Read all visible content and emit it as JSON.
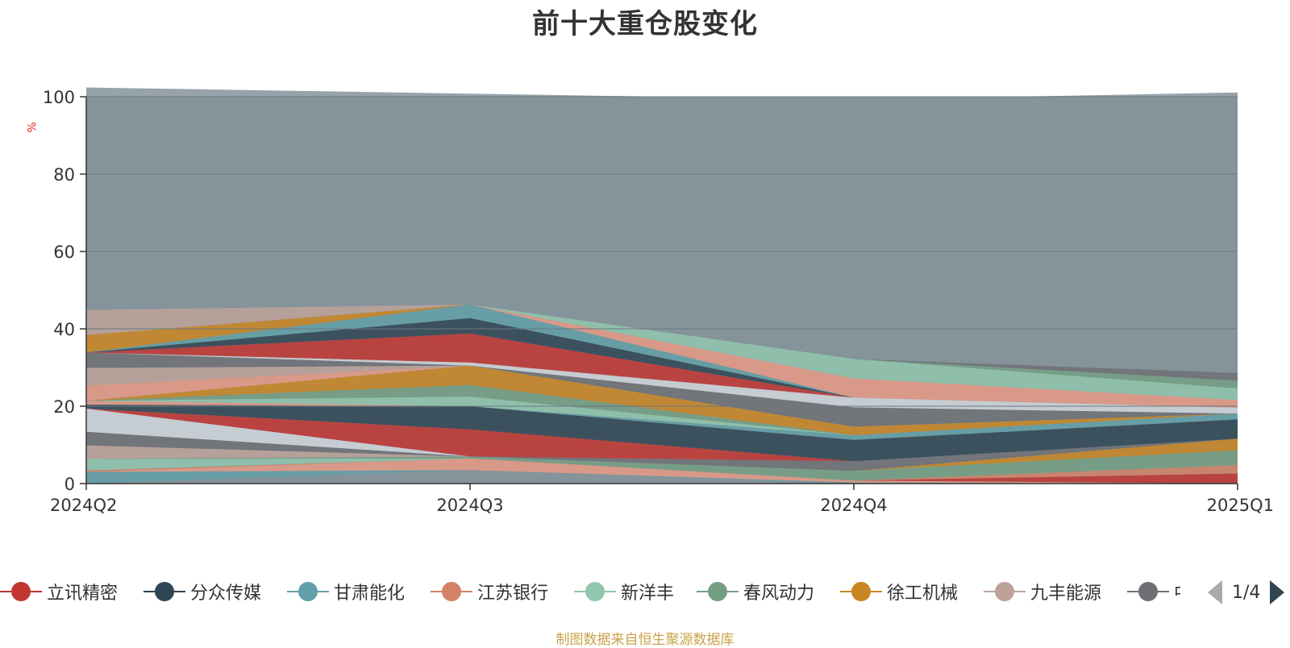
{
  "title": "前十大重仓股变化",
  "unit": "%",
  "source": "制图数据来自恒生聚源数据库",
  "pager": {
    "text": "1/4"
  },
  "legend": [
    {
      "name": "立讯精密",
      "color": "#c23531"
    },
    {
      "name": "分众传媒",
      "color": "#2f4554"
    },
    {
      "name": "甘肃能化",
      "color": "#61a0a8"
    },
    {
      "name": "江苏银行",
      "color": "#d48265"
    },
    {
      "name": "新洋丰",
      "color": "#91c7ae"
    },
    {
      "name": "春风动力",
      "color": "#749f83"
    },
    {
      "name": "徐工机械",
      "color": "#ca8622"
    },
    {
      "name": "九丰能源",
      "color": "#bda29a"
    },
    {
      "name": "中",
      "color": "#6e7074"
    }
  ],
  "chart_data": {
    "type": "area",
    "categories": [
      "2024Q2",
      "2024Q3",
      "2024Q4",
      "2025Q1"
    ],
    "ylim": [
      0,
      100
    ],
    "yticks": [
      0,
      20,
      40,
      60,
      80,
      100
    ],
    "grid": true,
    "background_color": "#85939b",
    "series": [
      {
        "color": "#85939b",
        "values": [
          0,
          3.5,
          0,
          0
        ]
      },
      {
        "color": "#61a0a8",
        "values": [
          3,
          0,
          0.3,
          0
        ]
      },
      {
        "color": "#e69a86",
        "values": [
          0,
          3,
          0.5,
          0
        ]
      },
      {
        "color": "#c23531",
        "values": [
          0,
          0,
          0,
          2.6
        ]
      },
      {
        "color": "#d48265",
        "values": [
          0.4,
          0,
          0,
          2.2
        ]
      },
      {
        "color": "#91c7ae",
        "values": [
          3,
          0,
          0,
          0
        ]
      },
      {
        "color": "#749f83",
        "values": [
          0,
          0.5,
          2.5,
          3.8
        ]
      },
      {
        "color": "#ca8622",
        "values": [
          0,
          0,
          0,
          3
        ]
      },
      {
        "color": "#bda29a",
        "values": [
          3.5,
          0,
          0,
          0
        ]
      },
      {
        "color": "#6e7074",
        "values": [
          3.5,
          0,
          2.5,
          0
        ]
      },
      {
        "color": "#d0d6dc",
        "values": [
          6,
          0,
          0,
          0
        ]
      },
      {
        "color": "#c23531",
        "values": [
          0,
          7,
          0,
          0
        ]
      },
      {
        "color": "#2f4554",
        "values": [
          1,
          6,
          5.5,
          5
        ]
      },
      {
        "color": "#61a0a8",
        "values": [
          0,
          0,
          1.2,
          1.5
        ]
      },
      {
        "color": "#e69a86",
        "values": [
          1,
          0,
          0,
          0
        ]
      },
      {
        "color": "#91c7ae",
        "values": [
          0,
          2.5,
          0,
          0
        ]
      },
      {
        "color": "#749f83",
        "values": [
          0,
          3,
          0,
          0
        ]
      },
      {
        "color": "#ca8622",
        "values": [
          0,
          5,
          2.2,
          0
        ]
      },
      {
        "color": "#e69a86",
        "values": [
          4,
          0,
          0,
          0
        ]
      },
      {
        "color": "#6e7074",
        "values": [
          0,
          0,
          2.5,
          0
        ]
      },
      {
        "color": "#bda29a",
        "values": [
          4.5,
          0,
          0,
          0
        ]
      },
      {
        "color": "#6e7074",
        "values": [
          4,
          0,
          2.5,
          0
        ]
      },
      {
        "color": "#d0d6dc",
        "values": [
          0,
          0.8,
          2.5,
          1.5
        ]
      },
      {
        "color": "#c23531",
        "values": [
          0,
          7.5,
          0,
          0
        ]
      },
      {
        "color": "#2f4554",
        "values": [
          0,
          4,
          0,
          0
        ]
      },
      {
        "color": "#61a0a8",
        "values": [
          0,
          3.5,
          0,
          0
        ]
      },
      {
        "color": "#e69a86",
        "values": [
          0,
          0,
          5,
          2
        ]
      },
      {
        "color": "#91c7ae",
        "values": [
          0,
          0,
          5,
          3
        ]
      },
      {
        "color": "#749f83",
        "values": [
          0,
          0,
          0,
          2
        ]
      },
      {
        "color": "#ca8622",
        "values": [
          4.5,
          0,
          0,
          0
        ]
      },
      {
        "color": "#bda29a",
        "values": [
          6.5,
          0,
          0,
          0
        ]
      },
      {
        "color": "#6e7074",
        "values": [
          0,
          0,
          0,
          2
        ]
      },
      {
        "color": "#85939b",
        "values": [
          57.5,
          54.5,
          67,
          72.5
        ]
      }
    ]
  }
}
